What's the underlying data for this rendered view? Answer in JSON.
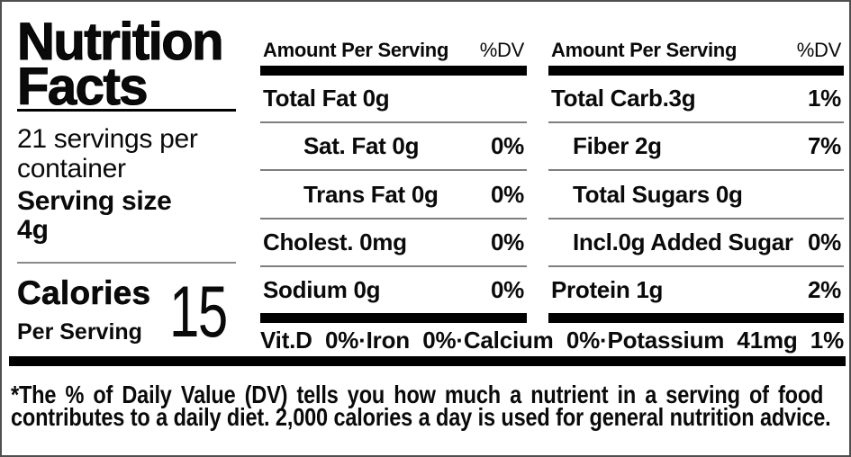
{
  "title": {
    "line1": "Nutrition",
    "line2": "Facts"
  },
  "servings": {
    "line1": "21 servings per",
    "line2": "container"
  },
  "serving_size": {
    "label": "Serving size",
    "value": "4g"
  },
  "calories": {
    "label": "Calories",
    "sublabel": "Per Serving",
    "value": "15"
  },
  "panels": [
    {
      "header": "Amount Per Serving",
      "dv_header": "%DV",
      "rows": [
        {
          "name": "Total Fat 0g",
          "dv": ""
        },
        {
          "name": "Sat. Fat 0g",
          "dv": "0%"
        },
        {
          "name": "Trans Fat 0g",
          "dv": "0%"
        },
        {
          "name": "Cholest. 0mg",
          "dv": "0%"
        },
        {
          "name": "Sodium 0g",
          "dv": "0%"
        }
      ]
    },
    {
      "header": "Amount Per Serving",
      "dv_header": "%DV",
      "rows": [
        {
          "name": "Total Carb.3g",
          "dv": "1%"
        },
        {
          "name": "Fiber 2g",
          "dv": "7%"
        },
        {
          "name": "Total Sugars 0g",
          "dv": ""
        },
        {
          "name": "Incl.0g Added Sugar",
          "dv": "0%"
        },
        {
          "name": "Protein 1g",
          "dv": "2%"
        }
      ]
    }
  ],
  "micronutrients": "Vit.D 0%·Iron 0%·Calcium 0%·Potassium 41mg 1%",
  "footnote": {
    "line1": "*The % of Daily Value (DV) tells you how much a nutrient in a serving of food",
    "line2": "contributes to a daily diet. 2,000 calories a day is used for general nutrition advice."
  }
}
